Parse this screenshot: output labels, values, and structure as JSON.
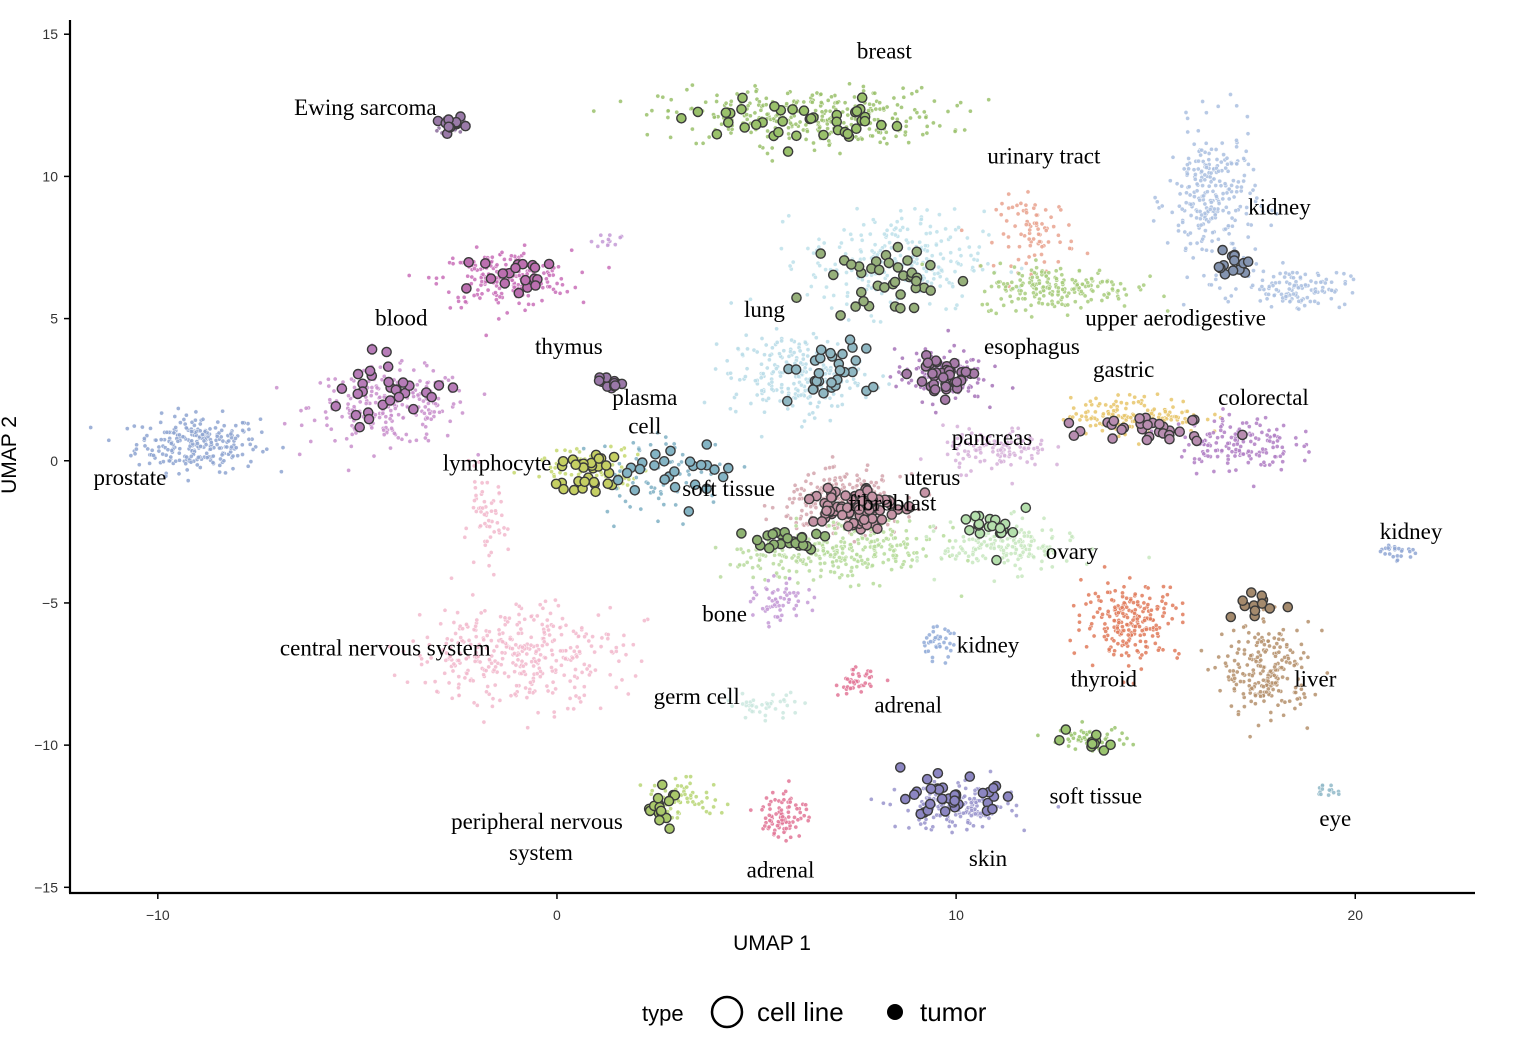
{
  "chart_data": {
    "type": "scatter",
    "title": "",
    "xlabel": "UMAP 1",
    "ylabel": "UMAP 2",
    "xlim": [
      -12.2,
      23
    ],
    "ylim": [
      -15.2,
      15.5
    ],
    "xticks": [
      -10,
      0,
      10,
      20
    ],
    "yticks": [
      -15,
      -10,
      -5,
      0,
      5,
      10,
      15
    ],
    "xtick_labels": [
      "−10",
      "0",
      "10",
      "20"
    ],
    "ytick_labels": [
      "−15",
      "−10",
      "−5",
      "0",
      "5",
      "10",
      "15"
    ],
    "grid": false,
    "legend": {
      "title": "type",
      "position": "bottom",
      "entries": [
        {
          "label": "cell line",
          "marker": "open-circle"
        },
        {
          "label": "tumor",
          "marker": "filled-circle"
        }
      ]
    },
    "cluster_labels": [
      {
        "text": "breast",
        "x": 8.2,
        "y": 14.4
      },
      {
        "text": "Ewing sarcoma",
        "x": -4.8,
        "y": 12.4
      },
      {
        "text": "urinary tract",
        "x": 12.2,
        "y": 10.7
      },
      {
        "text": "kidney",
        "x": 18.1,
        "y": 8.9
      },
      {
        "text": "blood",
        "x": -3.9,
        "y": 5.0
      },
      {
        "text": "lung",
        "x": 5.2,
        "y": 5.3
      },
      {
        "text": "upper aerodigestive",
        "x": 15.5,
        "y": 5.0
      },
      {
        "text": "thymus",
        "x": 0.3,
        "y": 4.0
      },
      {
        "text": "esophagus",
        "x": 11.9,
        "y": 4.0
      },
      {
        "text": "gastric",
        "x": 14.2,
        "y": 3.2
      },
      {
        "text": "plasma",
        "x": 2.2,
        "y": 2.2
      },
      {
        "text": "colorectal",
        "x": 17.7,
        "y": 2.2
      },
      {
        "text": "cell",
        "x": 2.2,
        "y": 1.2
      },
      {
        "text": "pancreas",
        "x": 10.9,
        "y": 0.8
      },
      {
        "text": "lymphocyte",
        "x": -1.5,
        "y": -0.1
      },
      {
        "text": "prostate",
        "x": -10.7,
        "y": -0.6
      },
      {
        "text": "uterus",
        "x": 9.4,
        "y": -0.6
      },
      {
        "text": "soft tissue",
        "x": 4.3,
        "y": -1.0
      },
      {
        "text": "fibroblast",
        "x": 8.4,
        "y": -1.5
      },
      {
        "text": "kidney",
        "x": 21.4,
        "y": -2.5
      },
      {
        "text": "ovary",
        "x": 12.9,
        "y": -3.2
      },
      {
        "text": "bone",
        "x": 4.2,
        "y": -5.4
      },
      {
        "text": "central nervous system",
        "x": -4.3,
        "y": -6.6
      },
      {
        "text": "kidney",
        "x": 10.8,
        "y": -6.5
      },
      {
        "text": "liver",
        "x": 19.0,
        "y": -7.7
      },
      {
        "text": "thyroid",
        "x": 13.7,
        "y": -7.7
      },
      {
        "text": "germ cell",
        "x": 3.5,
        "y": -8.3
      },
      {
        "text": "adrenal",
        "x": 8.8,
        "y": -8.6
      },
      {
        "text": "soft tissue",
        "x": 13.5,
        "y": -11.8
      },
      {
        "text": "eye",
        "x": 19.5,
        "y": -12.6
      },
      {
        "text": "peripheral nervous",
        "x": -0.5,
        "y": -12.7
      },
      {
        "text": "system",
        "x": -0.4,
        "y": -13.8
      },
      {
        "text": "skin",
        "x": 10.8,
        "y": -14.0
      },
      {
        "text": "adrenal",
        "x": 5.6,
        "y": -14.4
      }
    ],
    "series": [
      {
        "name": "",
        "color": "#8ea5d1",
        "center": [
          -9.0,
          0.6
        ],
        "spread": [
          1.4,
          0.9
        ],
        "count": 260
      },
      {
        "name": "",
        "color": "#c98fcc",
        "center": [
          -4.2,
          1.9
        ],
        "spread": [
          1.8,
          1.2
        ],
        "count": 230
      },
      {
        "name": "",
        "color": "#c96fb8",
        "center": [
          -1.3,
          6.4
        ],
        "spread": [
          1.5,
          0.9
        ],
        "count": 200
      },
      {
        "name": "",
        "color": "#8a6b9a",
        "center": [
          -2.6,
          11.8
        ],
        "spread": [
          0.3,
          0.3
        ],
        "count": 20
      },
      {
        "name": "",
        "color": "#9ac16b",
        "center": [
          6.2,
          12.1
        ],
        "spread": [
          3.2,
          0.9
        ],
        "count": 320
      },
      {
        "name": "",
        "color": "#e9a28e",
        "center": [
          12.0,
          8.0
        ],
        "spread": [
          0.9,
          1.2
        ],
        "count": 80
      },
      {
        "name": "",
        "color": "#aabfe0",
        "center": [
          16.4,
          9.2
        ],
        "spread": [
          1.0,
          2.3
        ],
        "count": 260
      },
      {
        "name": "",
        "color": "#aabfe0",
        "center": [
          18.5,
          6.1
        ],
        "spread": [
          1.2,
          0.6
        ],
        "count": 120
      },
      {
        "name": "",
        "color": "#bde0ea",
        "center": [
          8.5,
          7.0
        ],
        "spread": [
          2.0,
          1.6
        ],
        "count": 260
      },
      {
        "name": "",
        "color": "#a8cc7c",
        "center": [
          12.5,
          6.1
        ],
        "spread": [
          1.8,
          0.7
        ],
        "count": 200
      },
      {
        "name": "",
        "color": "#b8dce8",
        "center": [
          6.0,
          3.0
        ],
        "spread": [
          1.5,
          1.3
        ],
        "count": 230
      },
      {
        "name": "",
        "color": "#a673b8",
        "center": [
          9.6,
          3.0
        ],
        "spread": [
          1.0,
          0.8
        ],
        "count": 160
      },
      {
        "name": "",
        "color": "#e8c66a",
        "center": [
          14.5,
          1.6
        ],
        "spread": [
          1.5,
          0.6
        ],
        "count": 160
      },
      {
        "name": "",
        "color": "#b07ec4",
        "center": [
          17.0,
          0.6
        ],
        "spread": [
          1.3,
          0.9
        ],
        "count": 160
      },
      {
        "name": "",
        "color": "#d6b0d9",
        "center": [
          11.0,
          0.4
        ],
        "spread": [
          1.2,
          0.7
        ],
        "count": 120
      },
      {
        "name": "",
        "color": "#d3a4ad",
        "center": [
          7.2,
          -1.5
        ],
        "spread": [
          1.3,
          0.9
        ],
        "count": 300
      },
      {
        "name": "",
        "color": "#b6dc9a",
        "center": [
          7.6,
          -3.1
        ],
        "spread": [
          1.8,
          1.0
        ],
        "count": 200
      },
      {
        "name": "",
        "color": "#c8e8c0",
        "center": [
          11.3,
          -3.0
        ],
        "spread": [
          1.5,
          0.8
        ],
        "count": 180
      },
      {
        "name": "",
        "color": "#b9db9e",
        "center": [
          5.6,
          -3.5
        ],
        "spread": [
          1.4,
          0.6
        ],
        "count": 80
      },
      {
        "name": "",
        "color": "#c49ad6",
        "center": [
          5.6,
          -5.0
        ],
        "spread": [
          0.6,
          0.7
        ],
        "count": 60
      },
      {
        "name": "",
        "color": "#c6d86e",
        "center": [
          0.9,
          -0.2
        ],
        "spread": [
          1.4,
          0.6
        ],
        "count": 80
      },
      {
        "name": "",
        "color": "#7fb0c4",
        "center": [
          2.6,
          -0.5
        ],
        "spread": [
          1.6,
          1.4
        ],
        "count": 70
      },
      {
        "name": "",
        "color": "#f2b8cd",
        "center": [
          -1.0,
          -6.8
        ],
        "spread": [
          2.4,
          1.6
        ],
        "count": 360
      },
      {
        "name": "",
        "color": "#f2b8cd",
        "center": [
          -1.8,
          -2.2
        ],
        "spread": [
          0.5,
          1.4
        ],
        "count": 60
      },
      {
        "name": "",
        "color": "#92acd8",
        "center": [
          9.5,
          -6.4
        ],
        "spread": [
          0.4,
          0.5
        ],
        "count": 40
      },
      {
        "name": "",
        "color": "#e07a5a",
        "center": [
          14.4,
          -5.6
        ],
        "spread": [
          1.1,
          1.2
        ],
        "count": 220
      },
      {
        "name": "",
        "color": "#b5916c",
        "center": [
          17.8,
          -7.4
        ],
        "spread": [
          1.0,
          1.5
        ],
        "count": 220
      },
      {
        "name": "",
        "color": "#cbe8df",
        "center": [
          5.2,
          -8.6
        ],
        "spread": [
          0.9,
          0.4
        ],
        "count": 40
      },
      {
        "name": "",
        "color": "#e27696",
        "center": [
          7.5,
          -7.8
        ],
        "spread": [
          0.4,
          0.4
        ],
        "count": 40
      },
      {
        "name": "",
        "color": "#9ac46f",
        "center": [
          13.3,
          -9.8
        ],
        "spread": [
          0.9,
          0.4
        ],
        "count": 50
      },
      {
        "name": "",
        "color": "#9994cc",
        "center": [
          10.0,
          -12.2
        ],
        "spread": [
          1.3,
          0.7
        ],
        "count": 180
      },
      {
        "name": "",
        "color": "#b8d676",
        "center": [
          3.2,
          -11.9
        ],
        "spread": [
          0.9,
          0.6
        ],
        "count": 60
      },
      {
        "name": "",
        "color": "#e27696",
        "center": [
          5.7,
          -12.4
        ],
        "spread": [
          0.5,
          0.8
        ],
        "count": 90
      },
      {
        "name": "",
        "color": "#8fa6d4",
        "center": [
          21.0,
          -3.2
        ],
        "spread": [
          0.5,
          0.3
        ],
        "count": 25
      },
      {
        "name": "",
        "color": "#8fb8c8",
        "center": [
          19.3,
          -11.6
        ],
        "spread": [
          0.4,
          0.2
        ],
        "count": 15
      },
      {
        "name": "",
        "color": "#c49ad6",
        "center": [
          1.3,
          7.7
        ],
        "spread": [
          0.4,
          0.2
        ],
        "count": 12
      }
    ],
    "tumor_highlights": [
      {
        "center": [
          -2.6,
          11.8
        ],
        "spread": [
          0.25,
          0.25
        ],
        "count": 12,
        "color": "#9a7aa8"
      },
      {
        "center": [
          6.3,
          11.9
        ],
        "spread": [
          3.0,
          0.7
        ],
        "count": 40,
        "color": "#9ac16b"
      },
      {
        "center": [
          -0.9,
          6.4
        ],
        "spread": [
          1.4,
          0.7
        ],
        "count": 20,
        "color": "#bc6fb0"
      },
      {
        "center": [
          -4.2,
          2.5
        ],
        "spread": [
          1.8,
          1.1
        ],
        "count": 30,
        "color": "#b77cb8"
      },
      {
        "center": [
          16.8,
          7.0
        ],
        "spread": [
          0.5,
          0.5
        ],
        "count": 14,
        "color": "#8494b0"
      },
      {
        "center": [
          8.5,
          6.4
        ],
        "spread": [
          1.6,
          1.4
        ],
        "count": 40,
        "color": "#96b07a"
      },
      {
        "center": [
          6.6,
          3.1
        ],
        "spread": [
          1.2,
          1.0
        ],
        "count": 30,
        "color": "#8fb7c2"
      },
      {
        "center": [
          9.7,
          3.0
        ],
        "spread": [
          0.8,
          0.6
        ],
        "count": 40,
        "color": "#a67aa8"
      },
      {
        "center": [
          15.0,
          1.2
        ],
        "spread": [
          1.6,
          0.5
        ],
        "count": 30,
        "color": "#b88db0"
      },
      {
        "center": [
          7.4,
          -1.6
        ],
        "spread": [
          1.1,
          0.8
        ],
        "count": 90,
        "color": "#c694a6"
      },
      {
        "center": [
          5.5,
          -2.8
        ],
        "spread": [
          1.2,
          0.5
        ],
        "count": 25,
        "color": "#8fb372"
      },
      {
        "center": [
          1.3,
          2.7
        ],
        "spread": [
          0.7,
          0.2
        ],
        "count": 12,
        "color": "#9a78a8"
      },
      {
        "center": [
          0.8,
          -0.4
        ],
        "spread": [
          0.9,
          0.8
        ],
        "count": 30,
        "color": "#c5cf63"
      },
      {
        "center": [
          2.9,
          -0.4
        ],
        "spread": [
          1.3,
          1.1
        ],
        "count": 25,
        "color": "#84b4c4"
      },
      {
        "center": [
          11.2,
          -2.4
        ],
        "spread": [
          1.1,
          0.8
        ],
        "count": 20,
        "color": "#b4dfac"
      },
      {
        "center": [
          17.8,
          -5.0
        ],
        "spread": [
          0.8,
          0.7
        ],
        "count": 12,
        "color": "#a48a6d"
      },
      {
        "center": [
          13.3,
          -9.9
        ],
        "spread": [
          0.7,
          0.3
        ],
        "count": 10,
        "color": "#9ac46f"
      },
      {
        "center": [
          9.9,
          -11.9
        ],
        "spread": [
          1.1,
          0.7
        ],
        "count": 35,
        "color": "#8c86c2"
      },
      {
        "center": [
          2.6,
          -12.1
        ],
        "spread": [
          0.3,
          0.6
        ],
        "count": 18,
        "color": "#a9c86a"
      }
    ]
  }
}
